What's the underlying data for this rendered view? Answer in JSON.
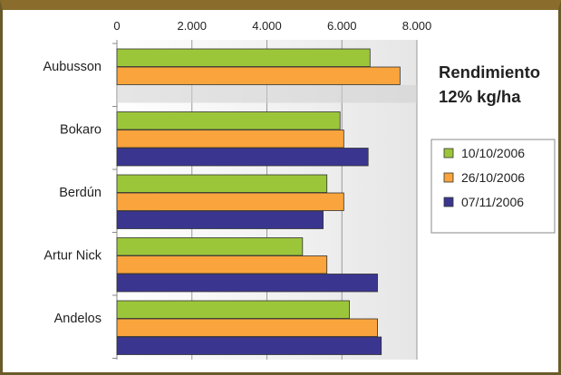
{
  "chart_data": {
    "type": "bar",
    "orientation": "horizontal",
    "title_lines": [
      "Rendimiento",
      "12% kg/ha"
    ],
    "categories": [
      "Aubusson",
      "Bokaro",
      "Berdún",
      "Artur Nick",
      "Andelos"
    ],
    "series": [
      {
        "name": "10/10/2006",
        "color": "#9cc63a",
        "values": [
          6750,
          5950,
          5600,
          4950,
          6200
        ]
      },
      {
        "name": "26/10/2006",
        "color": "#f9a43c",
        "values": [
          7550,
          6050,
          6050,
          5600,
          6950
        ]
      },
      {
        "name": "07/11/2006",
        "color": "#3a3690",
        "values": [
          null,
          6700,
          5500,
          6950,
          7050
        ]
      }
    ],
    "xlim": [
      0,
      8000
    ],
    "xticks": [
      0,
      2000,
      4000,
      6000,
      8000
    ],
    "xtick_labels": [
      "0",
      "2.000",
      "4.000",
      "6.000",
      "8.000"
    ],
    "xaxis_position": "top",
    "grid": true,
    "legend_position": "right"
  }
}
